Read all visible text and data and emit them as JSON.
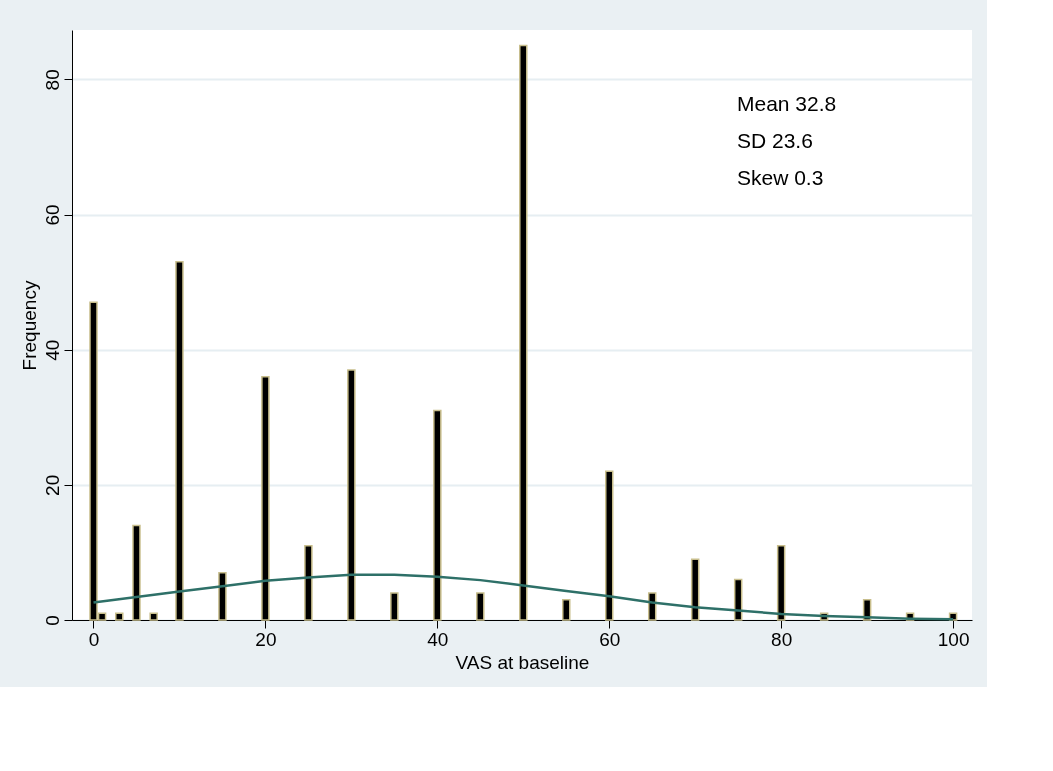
{
  "chart_data": {
    "type": "bar",
    "xlabel": "VAS at baseline",
    "ylabel": "Frequency",
    "x": [
      0,
      1,
      3,
      5,
      7,
      10,
      15,
      20,
      25,
      30,
      35,
      40,
      45,
      50,
      55,
      60,
      65,
      70,
      75,
      80,
      85,
      90,
      95,
      100
    ],
    "series": [
      {
        "color": "#000000",
        "values": [
          47,
          1,
          1,
          14,
          1,
          53,
          7,
          36,
          11,
          37,
          4,
          31,
          4,
          85,
          3,
          22,
          4,
          9,
          6,
          11,
          1,
          3,
          1,
          1
        ]
      },
      {
        "type": "line",
        "color": "#2e7068",
        "x": [
          0,
          5,
          10,
          15,
          20,
          25,
          30,
          35,
          40,
          45,
          50,
          55,
          60,
          65,
          70,
          75,
          80,
          85,
          90,
          95,
          100
        ],
        "values": [
          2.6,
          3.4,
          4.2,
          5.0,
          5.8,
          6.3,
          6.7,
          6.7,
          6.4,
          5.9,
          5.1,
          4.3,
          3.5,
          2.6,
          1.9,
          1.4,
          0.9,
          0.6,
          0.4,
          0.2,
          0.1
        ]
      }
    ],
    "xlim": [
      -2.5,
      102.2
    ],
    "ylim": [
      0,
      87.3
    ],
    "xticks": [
      0,
      20,
      40,
      60,
      80,
      100
    ],
    "yticks": [
      0,
      20,
      40,
      60,
      80
    ],
    "grid": "y",
    "marker": "none",
    "line_style": "solid",
    "annotations": [
      "Mean 32.8",
      "SD 23.6",
      "Skew 0.3"
    ]
  }
}
